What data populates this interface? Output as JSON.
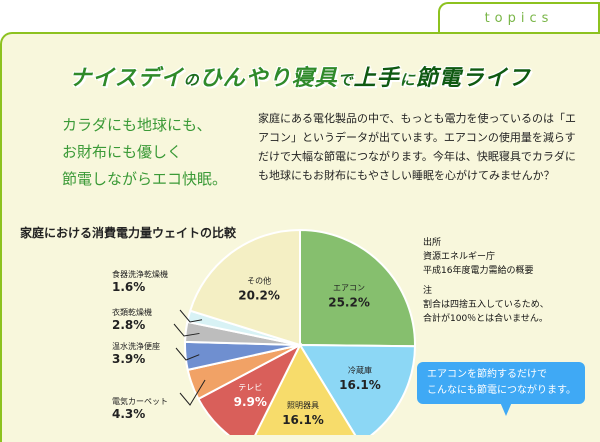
{
  "tab": {
    "label": "topics"
  },
  "title": {
    "part1": "ナイスデイ",
    "part2": "の",
    "part3": "ひんやり寝具",
    "part4": "で",
    "part5": "上手",
    "part6": "に",
    "part7": "節電ライフ"
  },
  "lead": {
    "line1": "カラダにも地球にも、",
    "line2": "お財布にも優しく",
    "line3": "節電しながらエコ快眠。"
  },
  "body_text": "家庭にある電化製品の中で、もっとも電力を使っているのは「エアコン」というデータが出ています。エアコンの使用量を減らすだけで大幅な節電につながります。今年は、快眠寝具でカラダにも地球にもお財布にもやさしい睡眠を心がけてみませんか？",
  "source": {
    "heading": "出所",
    "line1": "資源エネルギー庁",
    "line2": "平成16年度電力需給の概要"
  },
  "note": {
    "heading": "注",
    "line1": "割合は四捨五入しているため、",
    "line2": "合計が100％とは合いません。"
  },
  "callout": {
    "line1": "エアコンを節約するだけで",
    "line2": "こんなにも節電につながります。"
  },
  "chart_data": {
    "type": "pie",
    "title": "家庭における消費電力量ウェイトの比較",
    "unit": "%",
    "slices": [
      {
        "name": "エアコン",
        "value": 25.2,
        "color": "#86bf6e"
      },
      {
        "name": "冷蔵庫",
        "value": 16.1,
        "color": "#8cd7f5"
      },
      {
        "name": "照明器具",
        "value": 16.1,
        "color": "#f7dc6b"
      },
      {
        "name": "テレビ",
        "value": 9.9,
        "color": "#d95f5a"
      },
      {
        "name": "電気カーペット",
        "value": 4.3,
        "color": "#f1a266"
      },
      {
        "name": "温水洗浄便座",
        "value": 3.9,
        "color": "#6f8fd0"
      },
      {
        "name": "衣類乾燥機",
        "value": 2.8,
        "color": "#bdbdbd"
      },
      {
        "name": "食器洗浄乾燥機",
        "value": 1.6,
        "color": "#d8f2f5"
      },
      {
        "name": "その他",
        "value": 20.2,
        "color": "#f4efc4"
      }
    ]
  }
}
